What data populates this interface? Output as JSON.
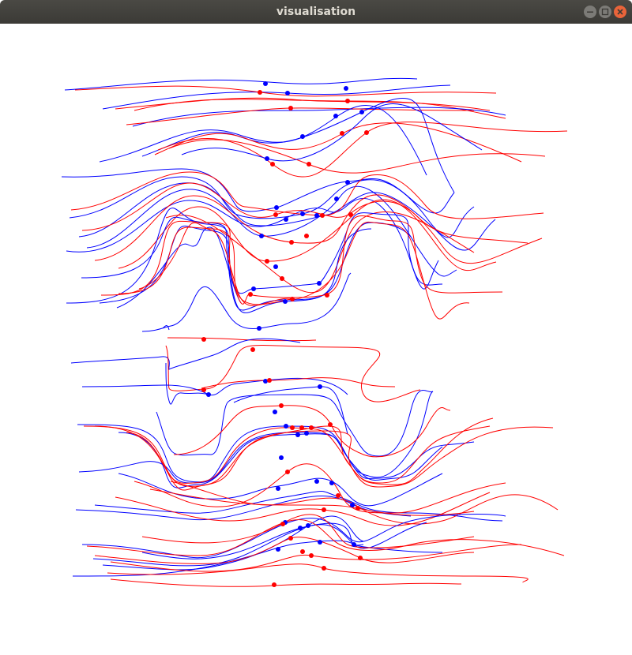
{
  "window": {
    "title": "visualisation",
    "buttons": {
      "minimize": "minimize-icon",
      "maximize": "maximize-icon",
      "close": "close-icon"
    }
  },
  "colors": {
    "titlebar": "#3c3b37",
    "title_text": "#dfdbd2",
    "close_button": "#e9643a",
    "blue_series": "#0000ff",
    "red_series": "#ff0000"
  }
}
